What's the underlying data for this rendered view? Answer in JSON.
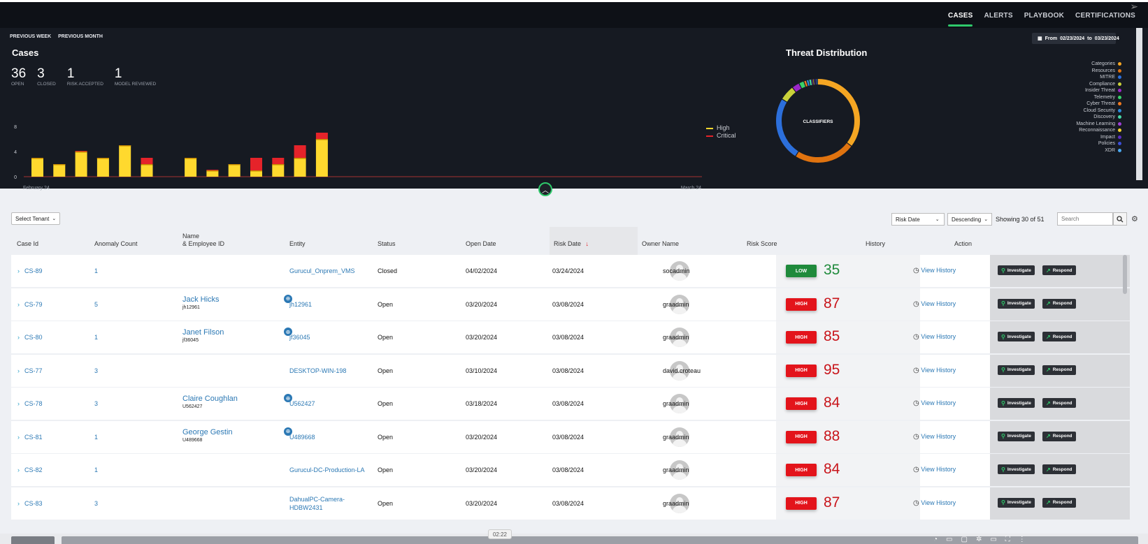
{
  "nav": {
    "items": [
      {
        "label": "CASES",
        "active": true
      },
      {
        "label": "ALERTS",
        "active": false
      },
      {
        "label": "PLAYBOOK",
        "active": false
      },
      {
        "label": "CERTIFICATIONS",
        "active": false
      }
    ]
  },
  "dashboard": {
    "previous_week": "PREVIOUS WEEK",
    "previous_month": "PREVIOUS MONTH",
    "cases_title": "Cases",
    "stats": [
      {
        "value": "36",
        "label": "OPEN"
      },
      {
        "value": "3",
        "label": "CLOSED"
      },
      {
        "value": "1",
        "label": "RISK ACCEPTED"
      },
      {
        "value": "1",
        "label": "MODEL REVIEWED"
      }
    ],
    "date_from_label": "From",
    "date_from": "02/23/2024",
    "date_to_label": "to",
    "date_to": "03/23/2024",
    "threat_title": "Threat Distribution",
    "donut_center": "CLASSIFIERS"
  },
  "chart_data": {
    "type": "bar",
    "stacked": true,
    "x_start_label": "February 24",
    "x_end_label": "March 24",
    "yticks": [
      0,
      4,
      8
    ],
    "ylim": [
      0,
      8
    ],
    "series": [
      {
        "name": "High",
        "color": "#ffd92e",
        "values": [
          3,
          2,
          4,
          3,
          5,
          2,
          0,
          3,
          1,
          2,
          1,
          2,
          3,
          6,
          0,
          0,
          0,
          0,
          0,
          0,
          0,
          0,
          0,
          0,
          0,
          0,
          0,
          0,
          0,
          0,
          0
        ]
      },
      {
        "name": "Critical",
        "color": "#e5232a",
        "values": [
          0,
          0,
          0.1,
          0,
          0,
          1,
          0,
          0,
          0.1,
          0,
          2,
          1,
          2,
          1,
          0,
          0,
          0,
          0,
          0,
          0,
          0,
          0,
          0,
          0,
          0,
          0,
          0,
          0,
          0,
          0,
          0
        ]
      }
    ]
  },
  "threat_distribution": {
    "segments": [
      {
        "name": "Categories",
        "color": "#f5a623",
        "value": 36
      },
      {
        "name": "Resources",
        "color": "#e0730f",
        "value": 24
      },
      {
        "name": "MITRE",
        "color": "#2c6fdb",
        "value": 25
      },
      {
        "name": "Compliance",
        "color": "#c9d13a",
        "value": 6
      },
      {
        "name": "Insider Threat",
        "color": "#9b27c9",
        "value": 3
      },
      {
        "name": "Telemetry",
        "color": "#3ad16a",
        "value": 2
      },
      {
        "name": "Cyber Threat",
        "color": "#f07a1f",
        "value": 1
      },
      {
        "name": "Cloud Security",
        "color": "#2e8bdc",
        "value": 1
      },
      {
        "name": "Discovery",
        "color": "#46d9a6",
        "value": 1
      },
      {
        "name": "Machine Learning",
        "color": "#9c3ed6",
        "value": 0.5
      },
      {
        "name": "Reconnaissance",
        "color": "#f4d02b",
        "value": 0.5
      },
      {
        "name": "Impact",
        "color": "#5a2ec2",
        "value": 0.5
      },
      {
        "name": "Policies",
        "color": "#3b4ed8",
        "value": 0.5
      },
      {
        "name": "XDR",
        "color": "#4aa8f0",
        "value": 0.5
      }
    ]
  },
  "toolbar": {
    "tenant": "Select Tenant",
    "sort_field": "Risk Date",
    "sort_order": "Descending",
    "showing": "Showing 30 of 51",
    "search_placeholder": "Search"
  },
  "columns": {
    "case_id": "Case Id",
    "anomaly_count": "Anomaly Count",
    "name_line1": "Name",
    "name_line2": "& Employee ID",
    "entity": "Entity",
    "status": "Status",
    "open_date": "Open Date",
    "risk_date": "Risk Date",
    "owner": "Owner Name",
    "risk_score": "Risk Score",
    "history": "History",
    "action": "Action"
  },
  "actions": {
    "investigate": "Investigate",
    "respond": "Respond",
    "view_history": "View History"
  },
  "rows": [
    {
      "id": "CS-89",
      "anomaly": "1",
      "name": "",
      "emp_id": "",
      "entity": "Gurucul_Onprem_VMS",
      "entity2": "",
      "status": "Closed",
      "open": "04/02/2024",
      "risk_date": "03/24/2024",
      "owner": "socadmin",
      "level": "LOW",
      "level_color": "#1f8a3b",
      "score": "35",
      "score_color": "#1f8a3b"
    },
    {
      "id": "CS-79",
      "anomaly": "5",
      "name": "Jack Hicks",
      "emp_id": "jh12961",
      "entity": "jh12961",
      "entity2": "",
      "status": "Open",
      "open": "03/20/2024",
      "risk_date": "03/08/2024",
      "owner": "graadmin",
      "level": "HIGH",
      "level_color": "#e3141b",
      "score": "87",
      "score_color": "#c8141a"
    },
    {
      "id": "CS-80",
      "anomaly": "1",
      "name": "Janet Filson",
      "emp_id": "jf36045",
      "entity": "jf36045",
      "entity2": "",
      "status": "Open",
      "open": "03/20/2024",
      "risk_date": "03/08/2024",
      "owner": "graadmin",
      "level": "HIGH",
      "level_color": "#e3141b",
      "score": "85",
      "score_color": "#c8141a"
    },
    {
      "id": "CS-77",
      "anomaly": "3",
      "name": "",
      "emp_id": "",
      "entity": "DESKTOP-WIN-198",
      "entity2": "",
      "status": "Open",
      "open": "03/10/2024",
      "risk_date": "03/08/2024",
      "owner": "david.croteau",
      "level": "HIGH",
      "level_color": "#e3141b",
      "score": "95",
      "score_color": "#c8141a"
    },
    {
      "id": "CS-78",
      "anomaly": "3",
      "name": "Claire Coughlan",
      "emp_id": "U562427",
      "entity": "U562427",
      "entity2": "",
      "status": "Open",
      "open": "03/18/2024",
      "risk_date": "03/08/2024",
      "owner": "graadmin",
      "level": "HIGH",
      "level_color": "#e3141b",
      "score": "84",
      "score_color": "#c8141a"
    },
    {
      "id": "CS-81",
      "anomaly": "1",
      "name": "George Gestin",
      "emp_id": "U489668",
      "entity": "U489668",
      "entity2": "",
      "status": "Open",
      "open": "03/20/2024",
      "risk_date": "03/08/2024",
      "owner": "graadmin",
      "level": "HIGH",
      "level_color": "#e3141b",
      "score": "88",
      "score_color": "#c8141a"
    },
    {
      "id": "CS-82",
      "anomaly": "1",
      "name": "",
      "emp_id": "",
      "entity": "Gurucul-DC-Production-LA",
      "entity2": "",
      "status": "Open",
      "open": "03/20/2024",
      "risk_date": "03/08/2024",
      "owner": "graadmin",
      "level": "HIGH",
      "level_color": "#e3141b",
      "score": "84",
      "score_color": "#c8141a"
    },
    {
      "id": "CS-83",
      "anomaly": "3",
      "name": "",
      "emp_id": "",
      "entity": "DahualPC-Camera-",
      "entity2": "HDBW2431",
      "status": "Open",
      "open": "03/20/2024",
      "risk_date": "03/08/2024",
      "owner": "graadmin",
      "level": "HIGH",
      "level_color": "#e3141b",
      "score": "87",
      "score_color": "#c8141a"
    }
  ],
  "player": {
    "time": "02:22"
  }
}
